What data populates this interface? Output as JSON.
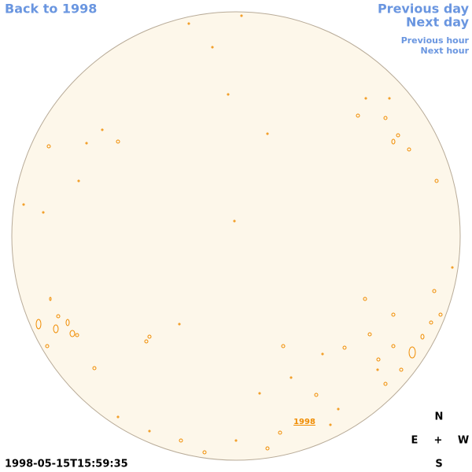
{
  "nav": {
    "back": "Back to 1998",
    "previous_day": "Previous day",
    "next_day": "Next day",
    "previous_hour": "Previous hour",
    "next_hour": "Next hour"
  },
  "map": {
    "year_link": "1998"
  },
  "timestamp": "1998-05-15T15:59:35",
  "compass": {
    "north": "N",
    "east": "E",
    "center": "+",
    "west": "W",
    "south": "S"
  }
}
